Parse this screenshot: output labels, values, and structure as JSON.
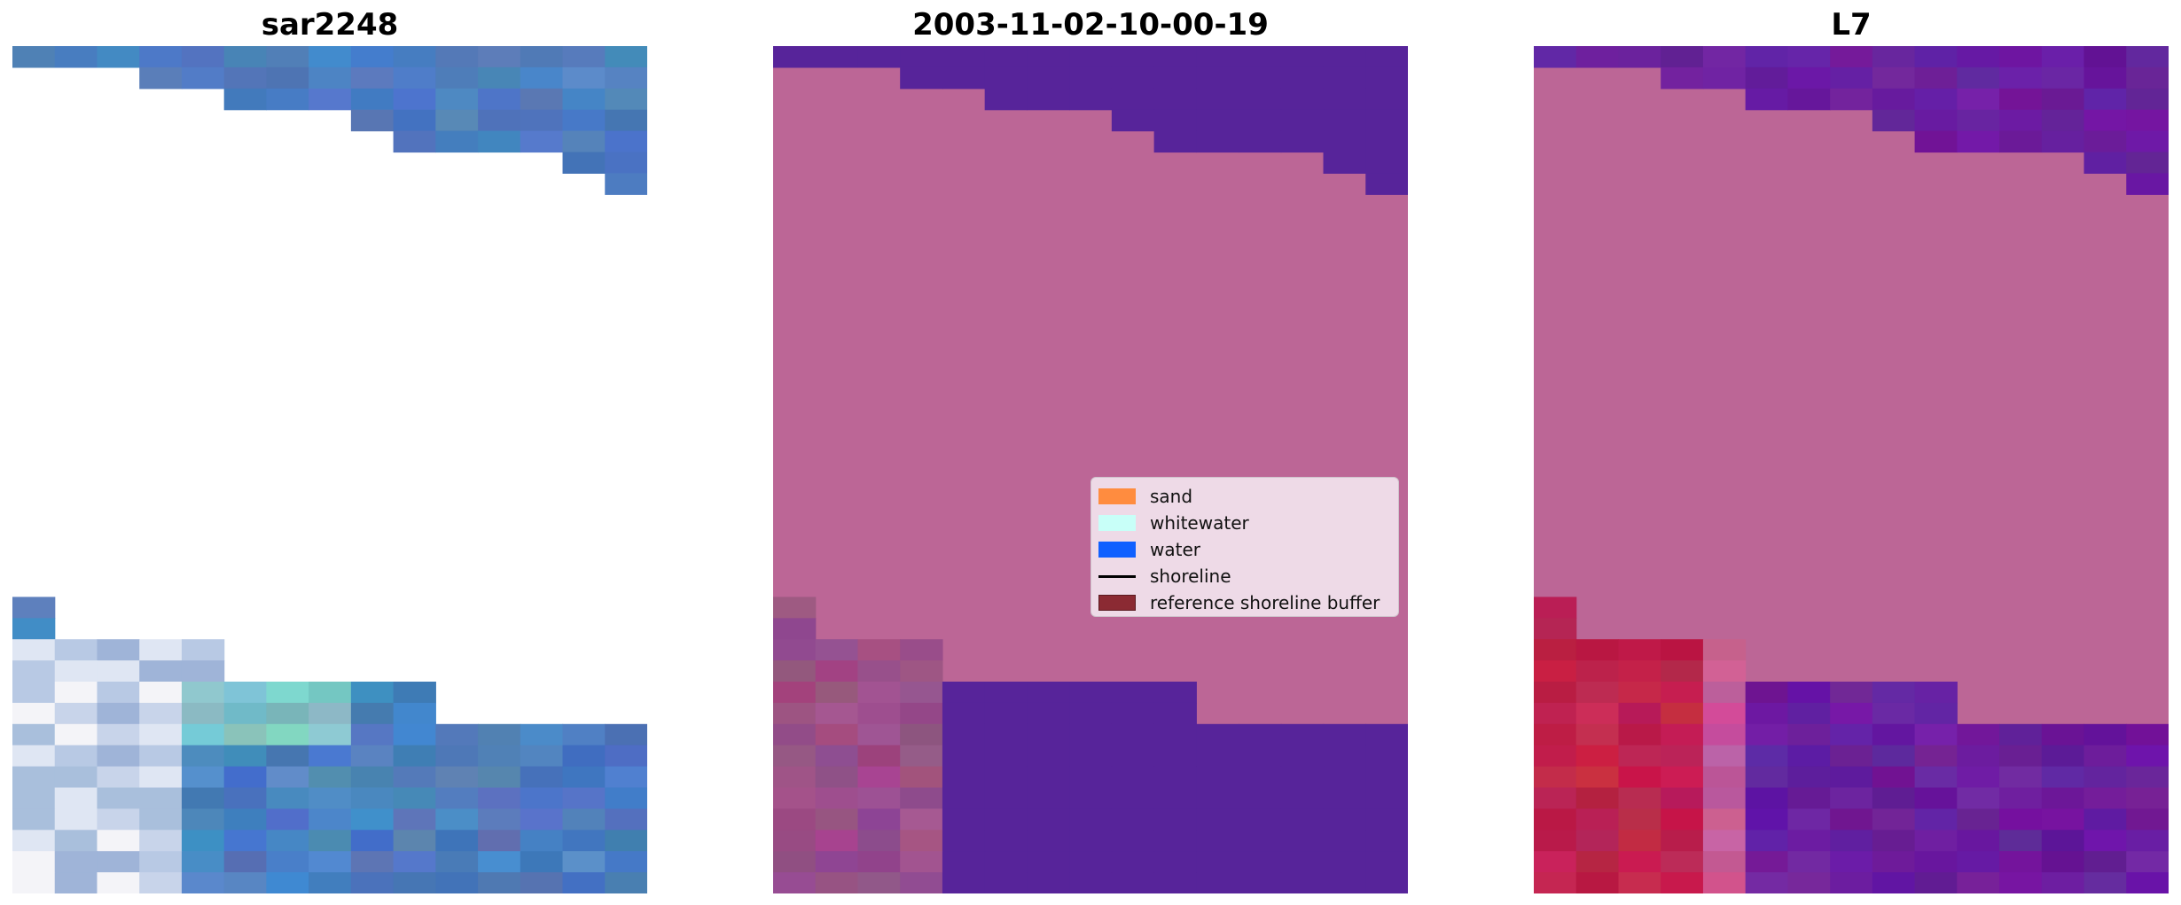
{
  "panels": [
    {
      "id": "sar",
      "title": "sar2248"
    },
    {
      "id": "classification",
      "title": "2003-11-02-10-00-19"
    },
    {
      "id": "index",
      "title": "L7"
    }
  ],
  "legend": {
    "items": [
      {
        "label": "sand",
        "kind": "patch",
        "color": "#ff8c3f"
      },
      {
        "label": "whitewater",
        "kind": "patch",
        "color": "#c8fff8"
      },
      {
        "label": "water",
        "kind": "patch",
        "color": "#1060ff"
      },
      {
        "label": "shoreline",
        "kind": "line",
        "color": "#000000"
      },
      {
        "label": "reference shoreline buffer",
        "kind": "patch",
        "color": "#8b2a33"
      }
    ]
  },
  "colors": {
    "sar_blue": "#4f7fc0",
    "class_land": "#bc6696",
    "class_water": "#57249a",
    "index_land": "#bc6696",
    "index_purple": "#6a1e9e",
    "index_red": "#c0224e"
  }
}
